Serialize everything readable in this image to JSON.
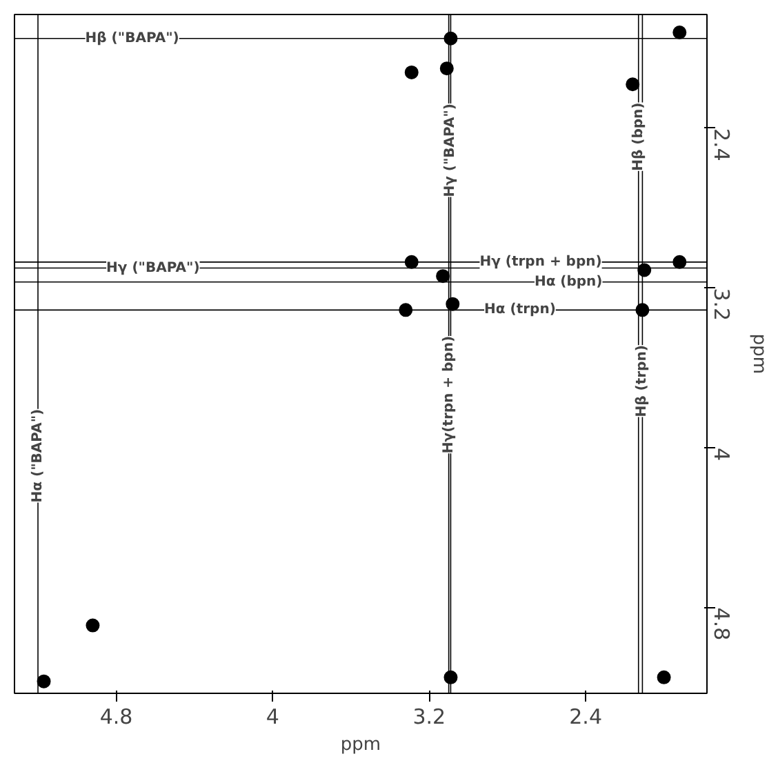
{
  "chart_data": {
    "type": "scatter",
    "xlabel": "ppm",
    "ylabel": "ppm",
    "x": [
      5.17,
      4.92,
      3.09,
      3.11,
      3.29,
      1.92,
      2.16,
      3.13,
      3.29,
      3.32,
      3.08,
      2.1,
      1.92,
      2.11,
      3.09,
      2.0
    ],
    "series": [
      {
        "color": "#000000",
        "values": [
          5.17,
          4.89,
          1.95,
          2.1,
          2.12,
          1.92,
          2.18,
          3.14,
          3.07,
          3.31,
          3.28,
          3.11,
          3.07,
          3.31,
          5.15,
          5.15
        ]
      }
    ],
    "marker": "circle",
    "xlim": [
      5.32,
      1.78
    ],
    "ylim": [
      5.23,
      1.83
    ],
    "xticks": [
      4.8,
      4.0,
      3.2,
      2.4
    ],
    "yticks": [
      2.4,
      3.2,
      4.0,
      4.8
    ],
    "grid": false,
    "ref_lines": [
      {
        "axis": "y",
        "value": 1.95,
        "label": "Hβ (\"BAPA\")"
      },
      {
        "axis": "y",
        "value": 3.1,
        "label": "Hγ (\"BAPA\")"
      },
      {
        "axis": "x",
        "value": 5.2,
        "label": "Hα (\"BAPA\")"
      },
      {
        "axis": "x",
        "value": 3.09,
        "label": "Hγ (\"BAPA\")"
      },
      {
        "axis": "x",
        "value": 2.13,
        "label": "Hβ (bpn)"
      },
      {
        "axis": "y",
        "value": 3.07,
        "label": "Hγ (trpn + bpn)"
      },
      {
        "axis": "y",
        "value": 3.17,
        "label": "Hα (bpn)"
      },
      {
        "axis": "y",
        "value": 3.31,
        "label": "Hα (trpn)"
      },
      {
        "axis": "x",
        "value": 3.1,
        "label": "Hγ(trpn + bpn)"
      },
      {
        "axis": "x",
        "value": 2.11,
        "label": "Hβ (trpn)"
      }
    ]
  }
}
